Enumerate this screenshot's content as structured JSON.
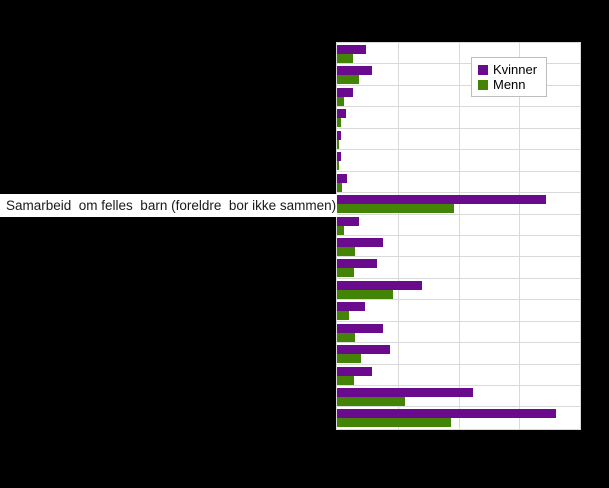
{
  "window": {
    "background_color": "#000000",
    "plot_background_color": "#ffffff",
    "gridline_color": "#d9d9d9"
  },
  "visible_label": {
    "text": "Samarbeid  om felles  barn (foreldre  bor ikke sammen)"
  },
  "legend": {
    "items": [
      {
        "label": "Kvinner",
        "color": "#6a0b8e"
      },
      {
        "label": "Menn",
        "color": "#438306"
      }
    ]
  },
  "chart_data": {
    "type": "bar",
    "orientation": "horizontal",
    "title": "",
    "xlabel": "",
    "ylabel": "",
    "xlim": [
      0,
      100
    ],
    "grid": true,
    "gridline_x_step_pct": 25,
    "legend_position": "inside-top-right",
    "axis_labels_visible": false,
    "categories": [
      "",
      "",
      "",
      "",
      "",
      "",
      "",
      "Samarbeid  om felles  barn (foreldre  bor ikke sammen)",
      "",
      "",
      "",
      "",
      "",
      "",
      "",
      "",
      "",
      ""
    ],
    "series": [
      {
        "name": "Kvinner",
        "color": "#6a0b8e",
        "values": [
          12,
          14.5,
          6.5,
          3.5,
          1.5,
          1.5,
          4,
          86,
          9,
          19,
          16.5,
          35,
          11.5,
          19,
          22,
          14.5,
          56,
          90
        ]
      },
      {
        "name": "Menn",
        "color": "#438306",
        "values": [
          6.5,
          9,
          3,
          1.5,
          1,
          1,
          2,
          48,
          3,
          7.5,
          7,
          23,
          5,
          7.5,
          10,
          7,
          28,
          47
        ]
      }
    ]
  }
}
